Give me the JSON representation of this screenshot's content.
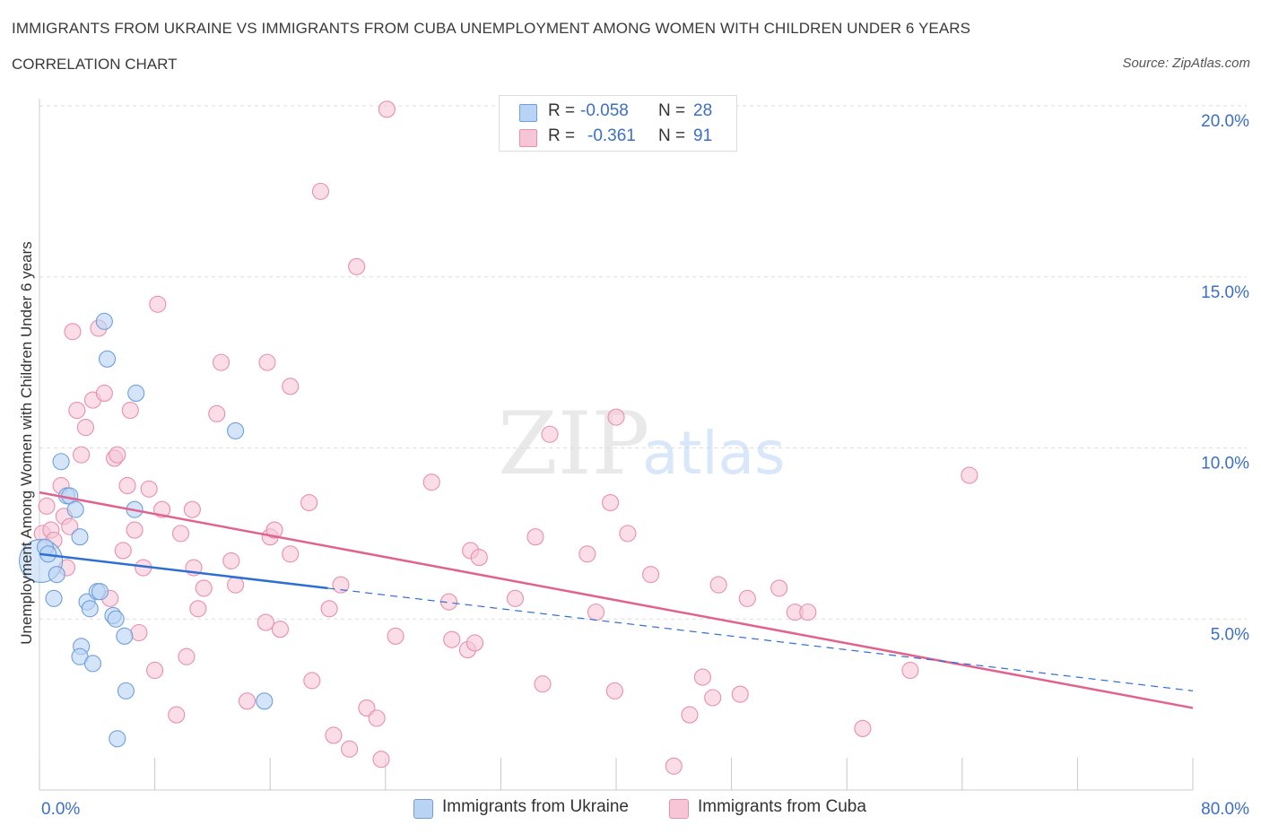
{
  "header": {
    "title": "IMMIGRANTS FROM UKRAINE VS IMMIGRANTS FROM CUBA UNEMPLOYMENT AMONG WOMEN WITH CHILDREN UNDER 6 YEARS",
    "subtitle": "CORRELATION CHART",
    "source": "Source: ZipAtlas.com"
  },
  "watermark": {
    "zip": "ZIP",
    "atlas": "atlas"
  },
  "legend": {
    "ukraine": {
      "r_label": "R =",
      "r_value": "-0.058",
      "n_label": "N =",
      "n_value": "28"
    },
    "cuba": {
      "r_label": "R =",
      "r_value": "-0.361",
      "n_label": "N =",
      "n_value": "91"
    }
  },
  "colors": {
    "ukraine_fill": "#b9d3f5",
    "ukraine_stroke": "#6f9fd9",
    "ukraine_line": "#2e6fd4",
    "cuba_fill": "#f7c6d6",
    "cuba_stroke": "#e88fad",
    "cuba_line": "#e0638f",
    "tick_label": "#3b6fc4",
    "grid": "#dddddd"
  },
  "chart_data": {
    "type": "scatter",
    "title": "IMMIGRANTS FROM UKRAINE VS IMMIGRANTS FROM CUBA UNEMPLOYMENT AMONG WOMEN WITH CHILDREN UNDER 6 YEARS",
    "xlabel": "",
    "ylabel": "Unemployment Among Women with Children Under 6 years",
    "xlim": [
      0,
      80
    ],
    "ylim": [
      0,
      20
    ],
    "x_tick_labels": [
      "0.0%",
      "80.0%"
    ],
    "y_ticks": [
      5,
      10,
      15,
      20
    ],
    "y_tick_labels": [
      "5.0%",
      "10.0%",
      "15.0%",
      "20.0%"
    ],
    "grid": true,
    "legend_position": "bottom",
    "series": [
      {
        "name": "Immigrants from Ukraine",
        "points": [
          [
            0.1,
            6.7
          ],
          [
            0.4,
            7.1
          ],
          [
            0.6,
            6.9
          ],
          [
            1.0,
            5.6
          ],
          [
            1.2,
            6.3
          ],
          [
            1.5,
            9.6
          ],
          [
            1.9,
            8.6
          ],
          [
            2.1,
            8.6
          ],
          [
            2.5,
            8.2
          ],
          [
            2.8,
            7.4
          ],
          [
            2.9,
            4.2
          ],
          [
            2.8,
            3.9
          ],
          [
            3.3,
            5.5
          ],
          [
            3.5,
            5.3
          ],
          [
            3.7,
            3.7
          ],
          [
            4.0,
            5.8
          ],
          [
            4.2,
            5.8
          ],
          [
            4.5,
            13.7
          ],
          [
            4.7,
            12.6
          ],
          [
            5.1,
            5.1
          ],
          [
            5.3,
            5.0
          ],
          [
            5.9,
            4.5
          ],
          [
            6.0,
            2.9
          ],
          [
            6.6,
            8.2
          ],
          [
            6.7,
            11.6
          ],
          [
            5.4,
            1.5
          ],
          [
            13.6,
            10.5
          ],
          [
            15.6,
            2.6
          ]
        ],
        "trend": {
          "x": [
            0,
            20
          ],
          "y": [
            6.9,
            5.9
          ],
          "dashed_extension": {
            "x": [
              20,
              80
            ],
            "y": [
              5.9,
              2.9
            ]
          }
        }
      },
      {
        "name": "Immigrants from Cuba",
        "points": [
          [
            0.2,
            7.5
          ],
          [
            0.5,
            8.3
          ],
          [
            0.8,
            7.6
          ],
          [
            1.0,
            7.3
          ],
          [
            1.5,
            8.9
          ],
          [
            1.7,
            8.0
          ],
          [
            1.9,
            6.5
          ],
          [
            2.1,
            7.7
          ],
          [
            2.3,
            13.4
          ],
          [
            2.6,
            11.1
          ],
          [
            2.9,
            9.8
          ],
          [
            3.2,
            10.6
          ],
          [
            3.7,
            11.4
          ],
          [
            4.1,
            13.5
          ],
          [
            4.5,
            11.6
          ],
          [
            4.9,
            5.6
          ],
          [
            5.2,
            9.7
          ],
          [
            5.4,
            9.8
          ],
          [
            5.8,
            7.0
          ],
          [
            6.1,
            8.9
          ],
          [
            6.3,
            11.1
          ],
          [
            6.6,
            7.6
          ],
          [
            6.9,
            4.6
          ],
          [
            7.2,
            6.5
          ],
          [
            7.6,
            8.8
          ],
          [
            8.0,
            3.5
          ],
          [
            8.2,
            14.2
          ],
          [
            8.5,
            8.2
          ],
          [
            9.5,
            2.2
          ],
          [
            9.8,
            7.5
          ],
          [
            10.2,
            3.9
          ],
          [
            10.6,
            8.2
          ],
          [
            10.7,
            6.5
          ],
          [
            11.0,
            5.3
          ],
          [
            11.4,
            5.9
          ],
          [
            12.3,
            11.0
          ],
          [
            12.6,
            12.5
          ],
          [
            13.3,
            6.7
          ],
          [
            13.6,
            6.0
          ],
          [
            14.4,
            2.6
          ],
          [
            15.7,
            4.9
          ],
          [
            15.8,
            12.5
          ],
          [
            16.0,
            7.4
          ],
          [
            16.3,
            7.6
          ],
          [
            16.7,
            4.7
          ],
          [
            17.4,
            6.9
          ],
          [
            17.4,
            11.8
          ],
          [
            18.7,
            8.4
          ],
          [
            18.9,
            3.2
          ],
          [
            19.5,
            17.5
          ],
          [
            20.1,
            5.3
          ],
          [
            20.4,
            1.6
          ],
          [
            20.9,
            6.0
          ],
          [
            21.5,
            1.2
          ],
          [
            22.0,
            15.3
          ],
          [
            22.7,
            2.4
          ],
          [
            23.4,
            2.1
          ],
          [
            23.7,
            0.9
          ],
          [
            24.1,
            19.9
          ],
          [
            24.7,
            4.5
          ],
          [
            27.2,
            9.0
          ],
          [
            28.4,
            5.5
          ],
          [
            28.6,
            4.4
          ],
          [
            29.7,
            4.1
          ],
          [
            29.9,
            7.0
          ],
          [
            30.2,
            4.3
          ],
          [
            30.5,
            6.8
          ],
          [
            33.0,
            5.6
          ],
          [
            34.4,
            7.4
          ],
          [
            34.9,
            3.1
          ],
          [
            35.4,
            10.4
          ],
          [
            38.0,
            6.9
          ],
          [
            38.6,
            5.2
          ],
          [
            39.6,
            8.4
          ],
          [
            39.9,
            2.9
          ],
          [
            40.0,
            10.9
          ],
          [
            40.8,
            7.5
          ],
          [
            42.4,
            6.3
          ],
          [
            44.0,
            0.7
          ],
          [
            45.1,
            2.2
          ],
          [
            46.0,
            3.3
          ],
          [
            46.7,
            2.7
          ],
          [
            47.1,
            6.0
          ],
          [
            48.6,
            2.8
          ],
          [
            49.1,
            5.6
          ],
          [
            51.3,
            5.9
          ],
          [
            52.4,
            5.2
          ],
          [
            53.3,
            5.2
          ],
          [
            57.1,
            1.8
          ],
          [
            60.4,
            3.5
          ],
          [
            64.5,
            9.2
          ]
        ],
        "trend": {
          "x": [
            0,
            80
          ],
          "y": [
            8.7,
            2.4
          ]
        }
      }
    ]
  },
  "bottom_legend": {
    "ukraine_label": "Immigrants from Ukraine",
    "cuba_label": "Immigrants from Cuba"
  }
}
